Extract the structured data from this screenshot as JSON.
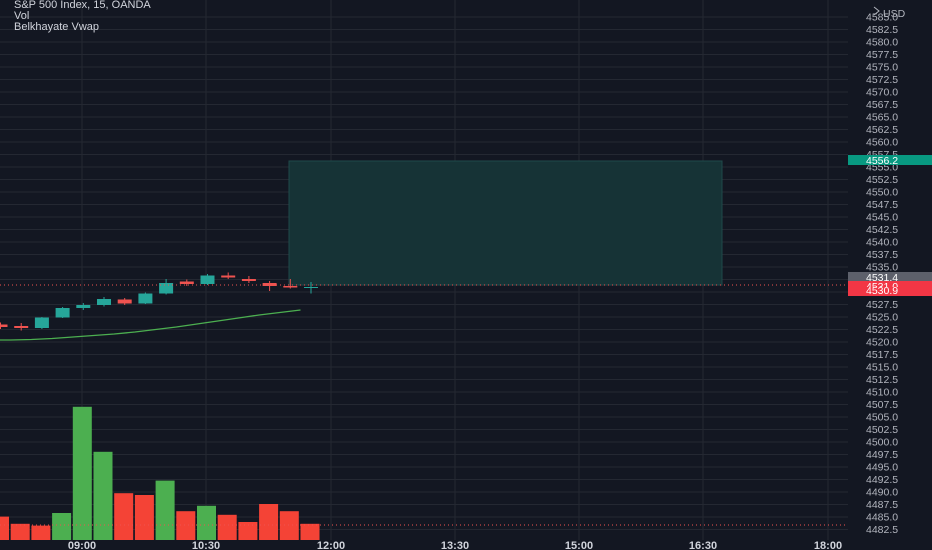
{
  "header": {
    "symbol_line": "S&P 500 Index, 15, OANDA",
    "indicator_vol": "Vol",
    "indicator_vwap": "Belkhayate Vwap"
  },
  "price_axis": {
    "currency": "USD"
  },
  "price_tags": {
    "target": "4556.2",
    "entry": "4531.4",
    "current": "4531.0",
    "stop": "4530.9"
  },
  "colors": {
    "background": "#131722",
    "up": "#26a69a",
    "down": "#ef5350",
    "vol_up": "#4caf50",
    "vol_down": "#f44336",
    "vwap": "#4caf50",
    "zone": "#163336",
    "grid": "#242832"
  },
  "chart_data": {
    "type": "candlestick",
    "title": "S&P 500 Index, 15, OANDA",
    "x_ticks": [
      "09:00",
      "10:30",
      "12:00",
      "13:30",
      "15:00",
      "16:30",
      "18:00"
    ],
    "y_ticks": [
      "4585.0",
      "4582.5",
      "4580.0",
      "4577.5",
      "4575.0",
      "4572.5",
      "4570.0",
      "4567.5",
      "4565.0",
      "4562.5",
      "4560.0",
      "4557.5",
      "4555.0",
      "4552.5",
      "4550.0",
      "4547.5",
      "4545.0",
      "4542.5",
      "4540.0",
      "4537.5",
      "4535.0",
      "4532.5",
      "4530.0",
      "4527.5",
      "4525.0",
      "4522.5",
      "4520.0",
      "4517.5",
      "4515.0",
      "4512.5",
      "4510.0",
      "4507.5",
      "4505.0",
      "4502.5",
      "4500.0",
      "4497.5",
      "4495.0",
      "4492.5",
      "4490.0",
      "4487.5",
      "4485.0",
      "4482.5"
    ],
    "ylim": [
      4482.0,
      4587.0
    ],
    "candles": [
      {
        "o": 4523.5,
        "h": 4523.9,
        "l": 4522.6,
        "c": 4523.0
      },
      {
        "o": 4523.2,
        "h": 4523.8,
        "l": 4522.3,
        "c": 4522.8
      },
      {
        "o": 4522.8,
        "h": 4525.0,
        "l": 4522.6,
        "c": 4524.9
      },
      {
        "o": 4524.9,
        "h": 4527.0,
        "l": 4524.8,
        "c": 4526.8
      },
      {
        "o": 4526.8,
        "h": 4527.8,
        "l": 4526.4,
        "c": 4527.4
      },
      {
        "o": 4527.4,
        "h": 4529.0,
        "l": 4527.1,
        "c": 4528.6
      },
      {
        "o": 4528.5,
        "h": 4528.8,
        "l": 4527.4,
        "c": 4527.7
      },
      {
        "o": 4527.7,
        "h": 4529.9,
        "l": 4527.6,
        "c": 4529.7
      },
      {
        "o": 4529.7,
        "h": 4532.6,
        "l": 4529.5,
        "c": 4531.8
      },
      {
        "o": 4532.1,
        "h": 4532.5,
        "l": 4531.2,
        "c": 4531.6
      },
      {
        "o": 4531.6,
        "h": 4533.6,
        "l": 4531.4,
        "c": 4533.3
      },
      {
        "o": 4533.3,
        "h": 4533.9,
        "l": 4532.6,
        "c": 4532.9
      },
      {
        "o": 4532.6,
        "h": 4533.2,
        "l": 4531.8,
        "c": 4532.2
      },
      {
        "o": 4531.8,
        "h": 4532.2,
        "l": 4530.2,
        "c": 4531.2
      },
      {
        "o": 4531.2,
        "h": 4532.6,
        "l": 4530.7,
        "c": 4530.9
      },
      {
        "o": 4530.9,
        "h": 4532.0,
        "l": 4529.7,
        "c": 4531.0
      }
    ],
    "volume": [
      {
        "v": 26,
        "up": false
      },
      {
        "v": 18,
        "up": false
      },
      {
        "v": 16,
        "up": false
      },
      {
        "v": 30,
        "up": true
      },
      {
        "v": 148,
        "up": true
      },
      {
        "v": 98,
        "up": true
      },
      {
        "v": 52,
        "up": false
      },
      {
        "v": 50,
        "up": false
      },
      {
        "v": 66,
        "up": true
      },
      {
        "v": 32,
        "up": false
      },
      {
        "v": 38,
        "up": true
      },
      {
        "v": 28,
        "up": false
      },
      {
        "v": 20,
        "up": false
      },
      {
        "v": 40,
        "up": false
      },
      {
        "v": 32,
        "up": false
      },
      {
        "v": 18,
        "up": false
      }
    ],
    "vwap": [
      4520.4,
      4520.4,
      4520.5,
      4520.7,
      4521.0,
      4521.3,
      4521.6,
      4522.0,
      4522.5,
      4523.0,
      4523.6,
      4524.2,
      4524.8,
      4525.4,
      4525.9,
      4526.4
    ],
    "position": {
      "entry": 4531.4,
      "target": 4556.2,
      "stop": 4530.9
    },
    "grid": true
  }
}
